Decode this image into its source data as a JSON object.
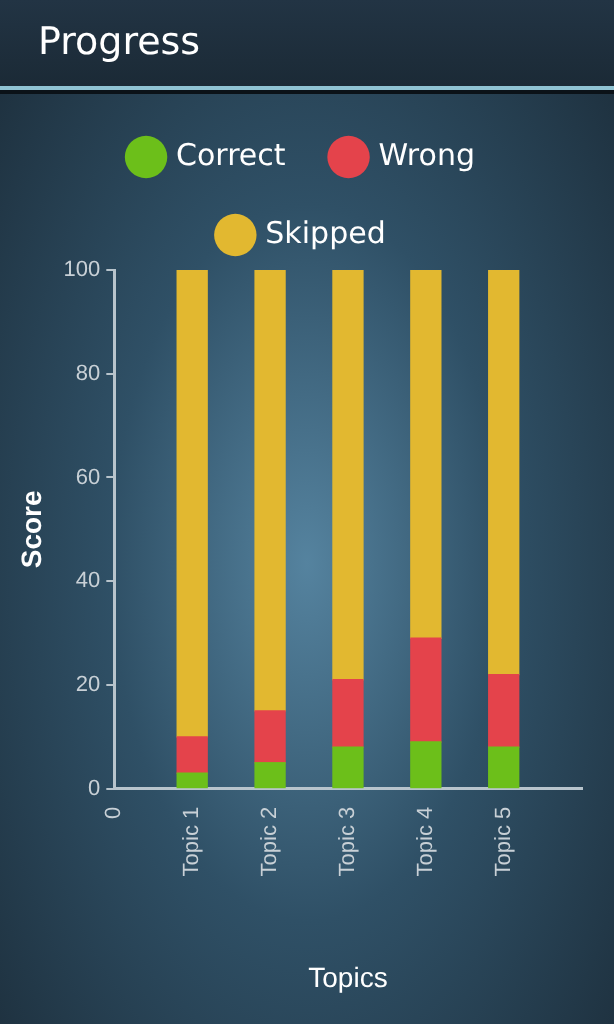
{
  "chart_data": {
    "type": "bar",
    "title": "Progress",
    "xlabel": "Topics",
    "ylabel": "Score",
    "categories": [
      "0",
      "Topic 1",
      "Topic 2",
      "Topic 3",
      "Topic 4",
      "Topic 5",
      null
    ],
    "stacked": true,
    "series": [
      {
        "name": "Correct",
        "color": "#6cbf1a",
        "values": [
          null,
          3,
          5,
          8,
          9,
          8,
          null
        ]
      },
      {
        "name": "Wrong",
        "color": "#e4434b",
        "values": [
          null,
          7,
          10,
          13,
          20,
          14,
          null
        ]
      },
      {
        "name": "Skipped",
        "color": "#e2b830",
        "values": [
          null,
          90,
          85,
          79,
          71,
          78,
          null
        ]
      }
    ],
    "ylim": [
      0,
      100
    ],
    "yticks": [
      0,
      20,
      40,
      60,
      80,
      100
    ],
    "grid": false,
    "legend": "top"
  }
}
